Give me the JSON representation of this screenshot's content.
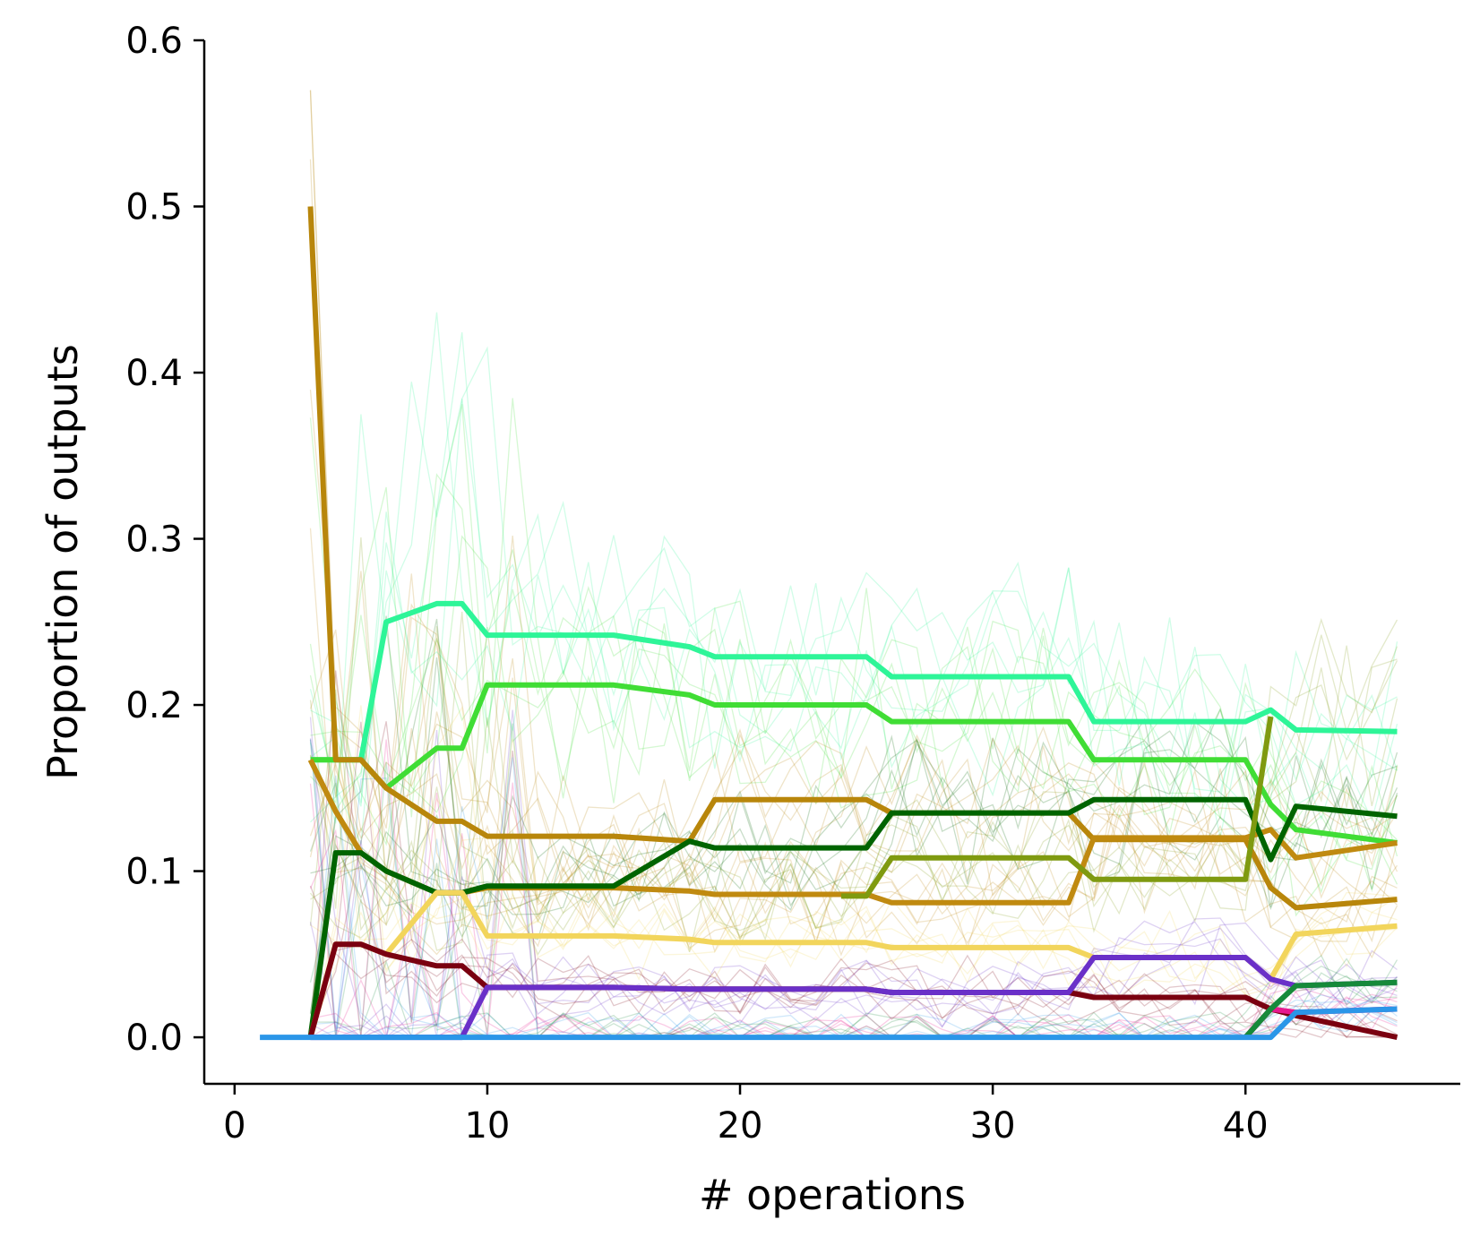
{
  "chart_data": {
    "type": "line",
    "title": "",
    "xlabel": "# operations",
    "ylabel": "Proportion of outputs",
    "xlim": [
      -1.2,
      48.5
    ],
    "ylim": [
      -0.028,
      0.6
    ],
    "xticks": [
      0,
      10,
      20,
      30,
      40
    ],
    "xtick_labels": [
      "0",
      "10",
      "20",
      "30",
      "40"
    ],
    "yticks": [
      0.0,
      0.1,
      0.2,
      0.3,
      0.4,
      0.5,
      0.6
    ],
    "ytick_labels": [
      "0.0",
      "0.1",
      "0.2",
      "0.3",
      "0.4",
      "0.5",
      "0.6"
    ],
    "grid": false,
    "legend": "none",
    "highlighted_series": [
      {
        "color": "#2ef598",
        "points": [
          [
            3,
            0.167
          ],
          [
            5,
            0.167
          ],
          [
            6,
            0.25
          ],
          [
            8,
            0.261
          ],
          [
            9,
            0.261
          ],
          [
            10,
            0.242
          ],
          [
            15,
            0.242
          ],
          [
            18,
            0.235
          ],
          [
            19,
            0.229
          ],
          [
            25,
            0.229
          ],
          [
            26,
            0.217
          ],
          [
            33,
            0.217
          ],
          [
            34,
            0.19
          ],
          [
            40,
            0.19
          ],
          [
            41,
            0.197
          ],
          [
            42,
            0.185
          ],
          [
            46,
            0.184
          ]
        ]
      },
      {
        "color": "#40dd35",
        "points": [
          [
            3,
            0.167
          ],
          [
            5,
            0.167
          ],
          [
            6,
            0.15
          ],
          [
            8,
            0.174
          ],
          [
            9,
            0.174
          ],
          [
            10,
            0.212
          ],
          [
            15,
            0.212
          ],
          [
            18,
            0.206
          ],
          [
            19,
            0.2
          ],
          [
            25,
            0.2
          ],
          [
            26,
            0.19
          ],
          [
            33,
            0.19
          ],
          [
            34,
            0.167
          ],
          [
            40,
            0.167
          ],
          [
            41,
            0.14
          ],
          [
            42,
            0.125
          ],
          [
            46,
            0.117
          ]
        ]
      },
      {
        "color": "#b8860b",
        "points": [
          [
            3,
            0.5
          ],
          [
            4,
            0.167
          ],
          [
            5,
            0.167
          ],
          [
            6,
            0.15
          ],
          [
            8,
            0.13
          ],
          [
            9,
            0.13
          ],
          [
            10,
            0.121
          ],
          [
            15,
            0.121
          ],
          [
            18,
            0.118
          ],
          [
            19,
            0.143
          ],
          [
            25,
            0.143
          ],
          [
            26,
            0.135
          ],
          [
            33,
            0.135
          ],
          [
            34,
            0.119
          ],
          [
            40,
            0.119
          ],
          [
            41,
            0.09
          ],
          [
            42,
            0.078
          ],
          [
            46,
            0.083
          ]
        ]
      },
      {
        "color": "#c08a10",
        "points": [
          [
            3,
            0.167
          ],
          [
            4,
            0.136
          ],
          [
            5,
            0.111
          ],
          [
            6,
            0.1
          ],
          [
            8,
            0.087
          ],
          [
            9,
            0.087
          ],
          [
            10,
            0.09
          ],
          [
            15,
            0.09
          ],
          [
            18,
            0.088
          ],
          [
            19,
            0.086
          ],
          [
            25,
            0.086
          ],
          [
            26,
            0.081
          ],
          [
            33,
            0.081
          ],
          [
            34,
            0.12
          ],
          [
            40,
            0.12
          ],
          [
            41,
            0.125
          ],
          [
            42,
            0.108
          ],
          [
            46,
            0.117
          ]
        ]
      },
      {
        "color": "#006400",
        "points": [
          [
            3,
            0.0
          ],
          [
            4,
            0.111
          ],
          [
            5,
            0.111
          ],
          [
            6,
            0.1
          ],
          [
            8,
            0.087
          ],
          [
            9,
            0.087
          ],
          [
            10,
            0.091
          ],
          [
            15,
            0.091
          ],
          [
            18,
            0.118
          ],
          [
            19,
            0.114
          ],
          [
            25,
            0.114
          ],
          [
            26,
            0.135
          ],
          [
            33,
            0.135
          ],
          [
            34,
            0.143
          ],
          [
            40,
            0.143
          ],
          [
            41,
            0.107
          ],
          [
            42,
            0.139
          ],
          [
            46,
            0.133
          ]
        ]
      },
      {
        "color": "#7f9a10",
        "points": [
          [
            24,
            0.085
          ],
          [
            25,
            0.085
          ],
          [
            26,
            0.108
          ],
          [
            33,
            0.108
          ],
          [
            34,
            0.095
          ],
          [
            40,
            0.095
          ],
          [
            41,
            0.193
          ]
        ]
      },
      {
        "color": "#f2d55c",
        "points": [
          [
            3,
            0.0
          ],
          [
            4,
            0.056
          ],
          [
            5,
            0.056
          ],
          [
            6,
            0.05
          ],
          [
            8,
            0.087
          ],
          [
            9,
            0.087
          ],
          [
            10,
            0.061
          ],
          [
            15,
            0.061
          ],
          [
            18,
            0.059
          ],
          [
            19,
            0.057
          ],
          [
            25,
            0.057
          ],
          [
            26,
            0.054
          ],
          [
            33,
            0.054
          ],
          [
            34,
            0.048
          ],
          [
            40,
            0.048
          ],
          [
            41,
            0.035
          ],
          [
            42,
            0.062
          ],
          [
            46,
            0.067
          ]
        ]
      },
      {
        "color": "#7a0010",
        "points": [
          [
            3,
            0.0
          ],
          [
            4,
            0.056
          ],
          [
            5,
            0.056
          ],
          [
            6,
            0.05
          ],
          [
            8,
            0.043
          ],
          [
            9,
            0.043
          ],
          [
            10,
            0.03
          ],
          [
            15,
            0.03
          ],
          [
            18,
            0.029
          ],
          [
            19,
            0.029
          ],
          [
            25,
            0.029
          ],
          [
            26,
            0.027
          ],
          [
            33,
            0.027
          ],
          [
            34,
            0.024
          ],
          [
            40,
            0.024
          ],
          [
            41,
            0.017
          ],
          [
            42,
            0.013
          ],
          [
            46,
            0.0
          ]
        ]
      },
      {
        "color": "#6a30c8",
        "points": [
          [
            3,
            0.0
          ],
          [
            9,
            0.0
          ],
          [
            10,
            0.03
          ],
          [
            15,
            0.03
          ],
          [
            18,
            0.029
          ],
          [
            19,
            0.029
          ],
          [
            25,
            0.029
          ],
          [
            26,
            0.027
          ],
          [
            33,
            0.027
          ],
          [
            34,
            0.048
          ],
          [
            40,
            0.048
          ],
          [
            41,
            0.035
          ],
          [
            42,
            0.031
          ],
          [
            46,
            0.033
          ]
        ]
      },
      {
        "color": "#e8198f",
        "points": [
          [
            40,
            0.0
          ],
          [
            41,
            0.017
          ],
          [
            42,
            0.015
          ],
          [
            46,
            0.017
          ]
        ]
      },
      {
        "color": "#168a3a",
        "points": [
          [
            40,
            0.0
          ],
          [
            41,
            0.017
          ],
          [
            42,
            0.031
          ],
          [
            46,
            0.033
          ]
        ]
      },
      {
        "color": "#2b96e8",
        "points": [
          [
            1,
            0.0
          ],
          [
            41,
            0.0
          ],
          [
            42,
            0.015
          ],
          [
            46,
            0.017
          ]
        ]
      }
    ]
  }
}
